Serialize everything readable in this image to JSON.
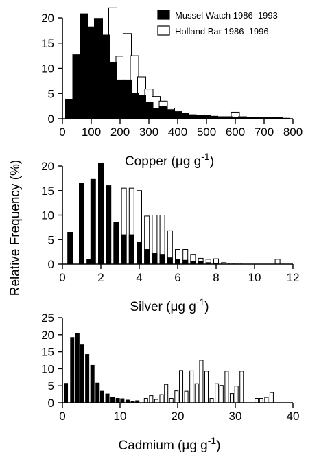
{
  "ylabel": "Relative Frequency (%)",
  "legend": {
    "mussel_watch": "Mussel Watch 1986–1993",
    "holland_bar": "Holland Bar 1986–1996"
  },
  "colors": {
    "mussel_watch": "#000000",
    "holland_bar": "#ffffff",
    "outline": "#000000"
  },
  "chart_data": [
    {
      "type": "bar",
      "xlabel_prefix": "Copper (",
      "xlabel_unit": "μg g",
      "xlabel_sup": "-1",
      "xlabel_suffix": ")",
      "xlim": [
        0,
        800
      ],
      "ylim": [
        0,
        20
      ],
      "xticks": [
        0,
        100,
        200,
        300,
        400,
        500,
        600,
        700,
        800
      ],
      "yticks": [
        0,
        5,
        10,
        15,
        20
      ],
      "bar_width": 12,
      "series": [
        {
          "name": "Mussel Watch 1986–1993",
          "fill": "black",
          "x": [
            25,
            50,
            75,
            100,
            125,
            150,
            175,
            200,
            225,
            250,
            275,
            300,
            325,
            350,
            375,
            400,
            425,
            450,
            475,
            500,
            525,
            550,
            575,
            600,
            625,
            650,
            675,
            700,
            725,
            750,
            775
          ],
          "values": [
            3.8,
            12.7,
            20.8,
            18.2,
            19.9,
            16.6,
            11.2,
            7.7,
            7.7,
            5.1,
            4.6,
            3.2,
            2.1,
            2.5,
            1.8,
            1.4,
            1.1,
            0.8,
            0.7,
            0.7,
            0.5,
            0.4,
            0.4,
            0.3,
            0.3,
            0.3,
            0.2,
            0.2,
            0.2,
            0.2,
            0.1
          ]
        },
        {
          "name": "Holland Bar 1986–1996",
          "fill": "white",
          "x": [
            100,
            125,
            150,
            175,
            200,
            225,
            250,
            275,
            300,
            325,
            350,
            375,
            400,
            425,
            450,
            475,
            500,
            525,
            550,
            575,
            600,
            625,
            650,
            675,
            700
          ],
          "values": [
            0.8,
            1.9,
            4.2,
            22.0,
            12.4,
            16.9,
            12.5,
            8.3,
            5.9,
            4.4,
            3.5,
            2.1,
            1.4,
            0.5,
            0.4,
            0.4,
            0.5,
            0.3,
            0.4,
            0.4,
            1.3,
            0.4,
            0.3,
            0.3,
            0.3
          ]
        }
      ]
    },
    {
      "type": "bar",
      "xlabel_prefix": "Silver (",
      "xlabel_unit": "μg g",
      "xlabel_sup": "-1",
      "xlabel_suffix": ")",
      "xlim": [
        0,
        12
      ],
      "ylim": [
        0,
        20
      ],
      "xticks": [
        0,
        2,
        4,
        6,
        8,
        10,
        12
      ],
      "yticks": [
        0,
        5,
        10,
        15,
        20
      ],
      "bar_width": 7,
      "series": [
        {
          "name": "Mussel Watch 1986–1993",
          "fill": "black",
          "x": [
            0.4,
            1.0,
            1.4,
            1.6,
            2.0,
            2.4,
            2.8,
            3.2,
            3.6,
            4.0,
            4.4,
            4.8,
            5.2,
            5.6,
            6.0,
            6.4,
            6.8,
            7.2,
            7.6,
            8.0
          ],
          "values": [
            6.5,
            16.5,
            1.0,
            17.3,
            20.5,
            16.0,
            8.5,
            6.0,
            6.0,
            4.5,
            3.0,
            2.3,
            2.0,
            1.3,
            1.0,
            0.8,
            0.6,
            0.5,
            0.3,
            0.2
          ]
        },
        {
          "name": "Holland Bar 1986–1996",
          "fill": "white",
          "x": [
            2.8,
            3.2,
            3.6,
            4.0,
            4.4,
            4.8,
            5.2,
            5.6,
            6.0,
            6.4,
            6.8,
            7.2,
            7.6,
            8.0,
            8.4,
            8.8,
            9.2,
            11.2
          ],
          "values": [
            7.5,
            15.5,
            15.5,
            15.0,
            9.8,
            10.0,
            10.0,
            6.8,
            3.0,
            3.0,
            2.0,
            1.2,
            1.0,
            1.1,
            0.3,
            0.2,
            0.2,
            1.0
          ]
        }
      ]
    },
    {
      "type": "bar",
      "xlabel_prefix": "Cadmium (",
      "xlabel_unit": "μg g",
      "xlabel_sup": "-1",
      "xlabel_suffix": ")",
      "xlim": [
        0,
        40
      ],
      "ylim": [
        0,
        25
      ],
      "xticks": [
        0,
        10,
        20,
        30,
        40
      ],
      "yticks": [
        0,
        5,
        10,
        15,
        20,
        25
      ],
      "bar_width": 5,
      "series": [
        {
          "name": "Mussel Watch 1986–1993",
          "fill": "black",
          "x": [
            0.6,
            1.7,
            2.6,
            3.4,
            4.3,
            5.2,
            6.1,
            6.9,
            7.8,
            8.7,
            9.6,
            10.4,
            11.3,
            12.2,
            13.0
          ],
          "values": [
            5.7,
            19.2,
            20.3,
            17.0,
            14.2,
            11.0,
            5.8,
            3.4,
            2.6,
            1.7,
            1.3,
            1.2,
            0.8,
            0.5,
            0.6
          ]
        },
        {
          "name": "Holland Bar 1986–1996",
          "fill": "white",
          "x": [
            14.5,
            15.4,
            16.3,
            17.2,
            18.0,
            18.9,
            19.8,
            20.6,
            21.5,
            22.4,
            23.3,
            24.1,
            25.0,
            25.9,
            26.8,
            27.6,
            28.5,
            29.4,
            30.2,
            31.1,
            33.7,
            34.5,
            35.4,
            36.3
          ],
          "values": [
            1.3,
            2.1,
            1.0,
            2.4,
            5.4,
            1.3,
            3.5,
            9.5,
            3.4,
            9.4,
            5.6,
            12.5,
            9.3,
            1.3,
            5.6,
            5.1,
            9.3,
            2.7,
            4.9,
            9.3,
            1.3,
            1.3,
            1.6,
            3.0
          ]
        }
      ]
    }
  ]
}
